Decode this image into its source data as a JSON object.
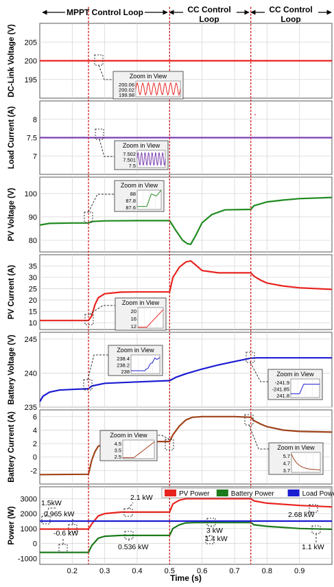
{
  "header": {
    "mppt_label": "MPPT Control Loop",
    "cc1_label_line1": "CC Control",
    "cc1_label_line2": "Loop",
    "cc2_label_line1": "CC Control",
    "cc2_label_line2": "Loop"
  },
  "chart_data": [
    {
      "type": "line",
      "ylabel": "DC-Link Voltage (V)",
      "ylim": [
        190,
        210
      ],
      "yticks": [
        195,
        200,
        205
      ],
      "xlim": [
        0.1,
        1.0
      ],
      "grid": true,
      "series": [
        {
          "color": "#e8231f",
          "x": [
            0.1,
            1.0
          ],
          "y": [
            200,
            200
          ]
        }
      ],
      "zoom": {
        "title": "Zoom in View",
        "ticks": [
          "200.06",
          "200.02",
          "199.98"
        ]
      }
    },
    {
      "type": "line",
      "ylabel": "Load Current (A)",
      "ylim": [
        6.5,
        8.5
      ],
      "yticks": [
        7,
        7.5,
        8
      ],
      "xlim": [
        0.1,
        1.0
      ],
      "grid": true,
      "series": [
        {
          "color": "#7b3fb0",
          "x": [
            0.1,
            1.0
          ],
          "y": [
            7.5,
            7.5
          ]
        }
      ],
      "zoom": {
        "title": "Zoom in View",
        "ticks": [
          "7.502",
          "7.501",
          "7.5"
        ]
      }
    },
    {
      "type": "line",
      "ylabel": "PV Voltage (V)",
      "ylim": [
        75,
        107
      ],
      "yticks": [
        80,
        90,
        100
      ],
      "xlim": [
        0.1,
        1.0
      ],
      "grid": true,
      "series": [
        {
          "color": "#1f8a1f",
          "x": [
            0.1,
            0.13,
            0.2,
            0.25,
            0.26,
            0.3,
            0.4,
            0.5,
            0.52,
            0.54,
            0.555,
            0.565,
            0.58,
            0.6,
            0.63,
            0.67,
            0.75,
            0.76,
            0.8,
            0.85,
            0.9,
            1.0
          ],
          "y": [
            86.5,
            87.2,
            87.4,
            87.4,
            88.0,
            88.3,
            88.4,
            88.4,
            84,
            80,
            78.5,
            78.3,
            82,
            87.5,
            91,
            93,
            93.2,
            94.8,
            96.4,
            97.2,
            97.8,
            98.3
          ]
        }
      ],
      "zoom": {
        "title": "Zoom in View",
        "ticks": [
          "88",
          "87.8",
          "87.6"
        ]
      }
    },
    {
      "type": "line",
      "ylabel": "PV Current (A)",
      "ylim": [
        7,
        40
      ],
      "yticks": [
        10,
        15,
        20,
        25,
        30,
        35
      ],
      "xlim": [
        0.1,
        1.0
      ],
      "grid": true,
      "series": [
        {
          "color": "#e8231f",
          "x": [
            0.1,
            0.25,
            0.26,
            0.27,
            0.28,
            0.3,
            0.35,
            0.4,
            0.5,
            0.51,
            0.53,
            0.55,
            0.565,
            0.58,
            0.6,
            0.65,
            0.75,
            0.76,
            0.78,
            0.8,
            0.85,
            0.9,
            1.0
          ],
          "y": [
            11.0,
            11.0,
            13,
            18,
            21,
            22.8,
            23.5,
            23.6,
            23.6,
            30,
            34.5,
            36.8,
            37.3,
            35.5,
            33,
            32,
            32,
            30.5,
            28.8,
            27.5,
            26.2,
            25.4,
            24.7
          ]
        }
      ],
      "zoom": {
        "title": "Zoom in View",
        "ticks": [
          "20",
          "16",
          "12"
        ]
      }
    },
    {
      "type": "line",
      "ylabel": "Battery Voltage (V)",
      "ylim": [
        235,
        246
      ],
      "yticks": [
        235,
        240,
        245
      ],
      "xlim": [
        0.1,
        1.0
      ],
      "grid": true,
      "series": [
        {
          "color": "#1b1bd1",
          "x": [
            0.1,
            0.11,
            0.13,
            0.16,
            0.2,
            0.25,
            0.26,
            0.3,
            0.4,
            0.5,
            0.52,
            0.55,
            0.6,
            0.65,
            0.7,
            0.75,
            0.77,
            0.8,
            0.9,
            1.0
          ],
          "y": [
            235.8,
            236.6,
            237.2,
            237.5,
            237.6,
            237.7,
            238.1,
            238.5,
            238.7,
            238.9,
            239.4,
            239.9,
            240.6,
            241.2,
            241.7,
            242.2,
            242.25,
            242.25,
            242.25,
            242.25
          ]
        }
      ],
      "zoom": {
        "title": "Zoom in View",
        "ticks": [
          "238.4",
          "238.2",
          "238"
        ]
      },
      "zoom2": {
        "title": "Zoom in View",
        "ticks": [
          "-241.9",
          "-241.85",
          "241.8"
        ]
      }
    },
    {
      "type": "line",
      "ylabel": "Battery Current (A)",
      "ylim": [
        -4,
        7
      ],
      "yticks": [
        -2,
        0,
        2,
        4,
        6
      ],
      "xlim": [
        0.1,
        1.0
      ],
      "grid": true,
      "series": [
        {
          "color": "#a0421a",
          "x": [
            0.1,
            0.25,
            0.26,
            0.27,
            0.28,
            0.3,
            0.35,
            0.5,
            0.51,
            0.53,
            0.55,
            0.57,
            0.6,
            0.7,
            0.75,
            0.76,
            0.78,
            0.8,
            0.85,
            0.9,
            1.0
          ],
          "y": [
            -2.6,
            -2.55,
            -0.5,
            0.8,
            1.6,
            2.0,
            2.3,
            2.3,
            3.3,
            4.6,
            5.5,
            5.9,
            6.0,
            6.0,
            5.9,
            5.4,
            4.9,
            4.5,
            4.0,
            3.8,
            3.7
          ]
        }
      ],
      "zoom": {
        "title": "Zoom in View",
        "ticks": [
          "4.5",
          "3.5",
          "2.5"
        ]
      },
      "zoom2": {
        "title": "Zoom in View",
        "ticks": [
          "5.7",
          "4.7",
          "3.7"
        ]
      }
    },
    {
      "type": "line",
      "ylabel": "Power (W)",
      "xlabel": "Time (s)",
      "ylim": [
        -1400,
        3800
      ],
      "yticks": [
        -1000,
        0,
        1000,
        2000,
        3000
      ],
      "xlim": [
        0.1,
        1.0
      ],
      "xticks": [
        0.2,
        0.3,
        0.4,
        0.5,
        0.6,
        0.7,
        0.8,
        0.9
      ],
      "grid": true,
      "legend": "top",
      "series": [
        {
          "name": "PV Power",
          "color": "#e8231f",
          "x": [
            0.1,
            0.25,
            0.26,
            0.28,
            0.3,
            0.35,
            0.5,
            0.51,
            0.53,
            0.55,
            0.58,
            0.75,
            0.76,
            0.8,
            0.9,
            1.0
          ],
          "y": [
            965,
            965,
            1300,
            1850,
            2000,
            2100,
            2100,
            2650,
            2900,
            3000,
            3000,
            3000,
            2850,
            2700,
            2550,
            2450
          ]
        },
        {
          "name": "Battery Power",
          "color": "#1b7a1b",
          "x": [
            0.1,
            0.25,
            0.26,
            0.28,
            0.3,
            0.35,
            0.5,
            0.51,
            0.53,
            0.55,
            0.58,
            0.75,
            0.76,
            0.8,
            0.9,
            1.0
          ],
          "y": [
            -600,
            -600,
            -150,
            350,
            480,
            536,
            536,
            1000,
            1250,
            1380,
            1400,
            1400,
            1250,
            1150,
            1000,
            950
          ]
        },
        {
          "name": "Load Power",
          "color": "#1b1bd1",
          "x": [
            0.1,
            1.0
          ],
          "y": [
            1500,
            1500
          ]
        }
      ],
      "annotations": [
        "1.5kW",
        "0.965 kW",
        "-0.6 kW",
        "2.1 kW",
        "0.536 kW",
        "3 kW",
        "1.4 kW",
        "2.68 kW",
        "1.1 kW"
      ]
    }
  ]
}
